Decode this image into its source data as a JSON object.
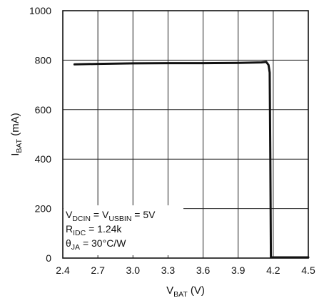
{
  "chart_data": {
    "type": "line",
    "x_ticks": [
      "2.4",
      "2.7",
      "3.0",
      "3.3",
      "3.6",
      "3.9",
      "4.2",
      "4.5"
    ],
    "y_ticks": [
      "0",
      "200",
      "400",
      "600",
      "800",
      "1000"
    ],
    "xlim": [
      2.4,
      4.5
    ],
    "ylim": [
      0,
      1000
    ],
    "grid": true,
    "xlabel": {
      "main": "V",
      "sub": "BAT",
      "unit": " (V)"
    },
    "ylabel": {
      "main": "I",
      "sub": "BAT",
      "unit": " (mA)"
    },
    "series": [
      {
        "color": "#111111",
        "x": [
          2.5,
          2.7,
          3.0,
          3.3,
          3.6,
          3.9,
          4.0,
          4.1,
          4.14,
          4.16,
          4.17,
          4.175,
          4.18,
          4.19,
          4.3,
          4.5
        ],
        "y": [
          783,
          785,
          787,
          788,
          788,
          789,
          790,
          791,
          793,
          780,
          750,
          400,
          3,
          3,
          3,
          3
        ]
      }
    ],
    "annotations": [
      {
        "parts": [
          [
            "V",
            ""
          ],
          [
            "DCIN",
            "sub"
          ],
          [
            " = V",
            ""
          ],
          [
            "USBIN",
            "sub"
          ],
          [
            " = 5V",
            ""
          ]
        ]
      },
      {
        "parts": [
          [
            "R",
            ""
          ],
          [
            "IDC",
            "sub"
          ],
          [
            " = 1.24k",
            ""
          ]
        ]
      },
      {
        "parts": [
          [
            "θ",
            ""
          ],
          [
            "JA",
            "sub"
          ],
          [
            " = 30°C/W",
            ""
          ]
        ]
      }
    ]
  }
}
